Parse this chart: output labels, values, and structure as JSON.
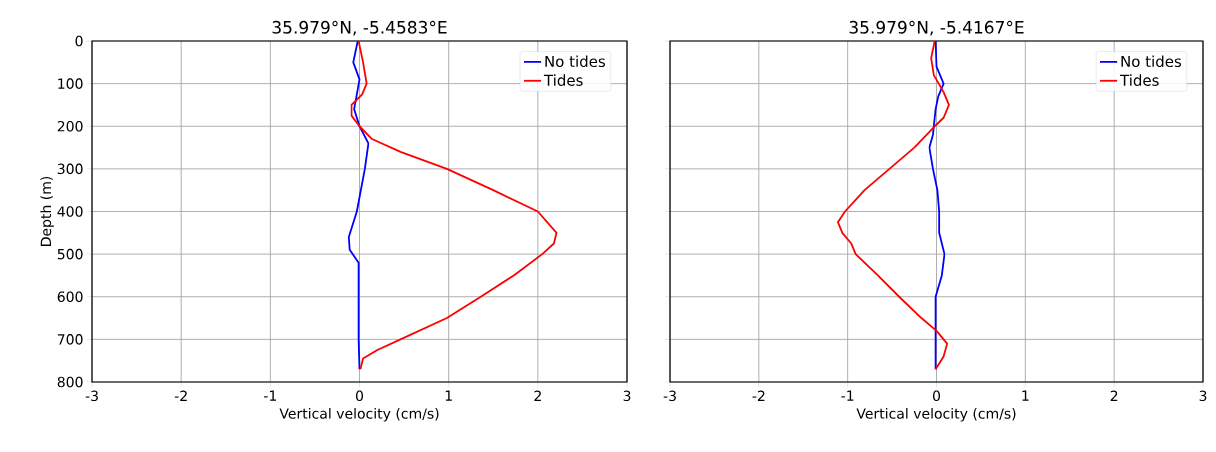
{
  "chart_data": [
    {
      "type": "line",
      "title": "35.979°N, -5.4583°E",
      "xlabel": "Vertical velocity (cm/s)",
      "ylabel": "Depth (m)",
      "xlim": [
        -3,
        3
      ],
      "ylim": [
        800,
        0
      ],
      "xticks": [
        -3,
        -2,
        -1,
        0,
        1,
        2,
        3
      ],
      "yticks": [
        0,
        100,
        200,
        300,
        400,
        500,
        600,
        700,
        800
      ],
      "grid": true,
      "legend": "top right",
      "line_style": "solid",
      "series": [
        {
          "name": "No tides",
          "color": "#0000ff",
          "x": [
            -0.02,
            -0.07,
            0,
            -0.03,
            -0.06,
            0,
            0.1,
            0.06,
            -0.03,
            -0.12,
            -0.11,
            -0.01,
            -0.01,
            0
          ],
          "values": [
            0,
            50,
            90,
            125,
            160,
            200,
            240,
            300,
            400,
            460,
            490,
            520,
            700,
            770
          ]
        },
        {
          "name": "Tides",
          "color": "#ff0000",
          "x": [
            -0.01,
            0.04,
            0.08,
            0.03,
            -0.09,
            -0.09,
            0,
            0.14,
            0.46,
            0.98,
            1.5,
            2.0,
            2.21,
            2.18,
            2.05,
            1.73,
            1.36,
            0.98,
            0.46,
            0.2,
            0.04,
            0.01
          ],
          "values": [
            0,
            50,
            100,
            125,
            150,
            175,
            200,
            230,
            260,
            300,
            350,
            400,
            450,
            475,
            500,
            550,
            600,
            650,
            700,
            725,
            745,
            770
          ]
        }
      ]
    },
    {
      "type": "line",
      "title": "35.979°N, -5.4167°E",
      "xlabel": "Vertical velocity (cm/s)",
      "xlim": [
        -3,
        3
      ],
      "ylim": [
        800,
        0
      ],
      "xticks": [
        -3,
        -2,
        -1,
        0,
        1,
        2,
        3
      ],
      "yticks": [
        0,
        100,
        200,
        300,
        400,
        500,
        600,
        700,
        800
      ],
      "tick_labels": "x",
      "grid": true,
      "legend": "top right",
      "line_style": "solid",
      "series": [
        {
          "name": "No tides",
          "color": "#0000ff",
          "x": [
            -0.01,
            0,
            0.08,
            0.02,
            -0.01,
            -0.04,
            -0.08,
            -0.04,
            0.01,
            0.03,
            0.03,
            0.09,
            0.06,
            -0.01,
            -0.01
          ],
          "values": [
            0,
            60,
            100,
            130,
            160,
            220,
            250,
            300,
            350,
            400,
            450,
            500,
            550,
            600,
            770
          ]
        },
        {
          "name": "Tides",
          "color": "#ff0000",
          "x": [
            -0.02,
            -0.06,
            -0.03,
            0.08,
            0.14,
            0.08,
            -0.02,
            -0.25,
            -0.53,
            -0.81,
            -1.03,
            -1.11,
            -1.06,
            -0.96,
            -0.91,
            -0.66,
            -0.42,
            -0.17,
            0,
            0.12,
            0.08,
            -0.01
          ],
          "values": [
            0,
            40,
            80,
            120,
            150,
            180,
            200,
            250,
            300,
            350,
            400,
            425,
            450,
            475,
            500,
            550,
            600,
            650,
            680,
            710,
            740,
            770
          ]
        }
      ]
    }
  ]
}
